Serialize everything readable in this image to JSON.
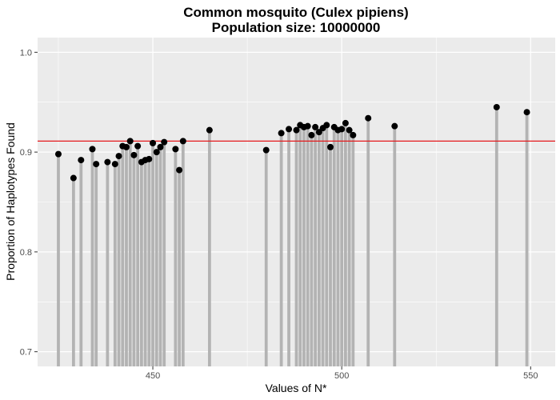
{
  "chart_data": {
    "type": "bar",
    "title": "Common mosquito (Culex pipiens)",
    "subtitle": "Population size: 10000000",
    "xlabel": "Values of N*",
    "ylabel": "Proportion of Haplotypes Found",
    "xlim": [
      419.5,
      556.5
    ],
    "ylim": [
      0.6853,
      1.0147
    ],
    "x_ticks": [
      450,
      500,
      550
    ],
    "y_ticks": [
      0.7,
      0.8,
      0.9,
      1.0
    ],
    "x_tick_labels": [
      "450",
      "500",
      "550"
    ],
    "y_tick_labels": [
      "0.7",
      "0.8",
      "0.9",
      "1.0"
    ],
    "reference_line": 0.911,
    "grid": true,
    "colors": {
      "bar": "#b3b3b3",
      "point": "#000000",
      "reference_line": "#e41a1c",
      "panel": "#ebebeb",
      "grid": "#ffffff"
    },
    "x": [
      425,
      429,
      431,
      434,
      435,
      438,
      440,
      441,
      442,
      443,
      444,
      445,
      446,
      447,
      448,
      449,
      450,
      451,
      452,
      453,
      456,
      457,
      458,
      465,
      480,
      484,
      486,
      488,
      489,
      490,
      491,
      492,
      493,
      494,
      495,
      496,
      497,
      498,
      499,
      500,
      501,
      502,
      503,
      507,
      514,
      541,
      549
    ],
    "values": [
      0.898,
      0.874,
      0.892,
      0.903,
      0.888,
      0.89,
      0.888,
      0.896,
      0.906,
      0.905,
      0.911,
      0.897,
      0.906,
      0.89,
      0.892,
      0.893,
      0.909,
      0.9,
      0.905,
      0.91,
      0.903,
      0.882,
      0.911,
      0.922,
      0.902,
      0.919,
      0.923,
      0.922,
      0.927,
      0.925,
      0.926,
      0.917,
      0.925,
      0.92,
      0.924,
      0.927,
      0.905,
      0.925,
      0.922,
      0.923,
      0.929,
      0.922,
      0.917,
      0.934,
      0.926,
      0.945,
      0.94
    ]
  }
}
